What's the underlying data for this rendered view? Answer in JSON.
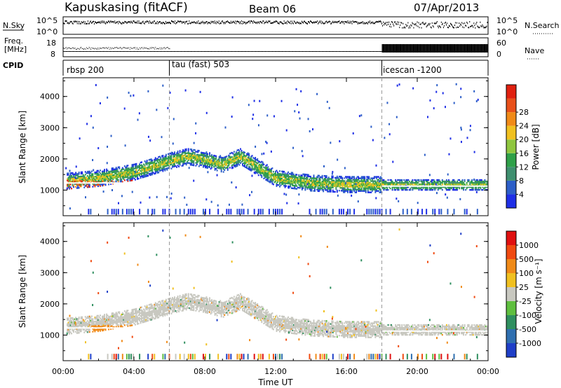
{
  "header": {
    "station": "Kapuskasing (fitACF)",
    "beam": "Beam 06",
    "date": "07/Apr/2013"
  },
  "left_labels": {
    "nsky": "N.Sky",
    "freq_line1": "Freq.",
    "freq_line2": "[MHz]",
    "cpid": "CPID"
  },
  "right_labels": {
    "nsearch": "N.Search",
    "nave": "Nave"
  },
  "noise_axis": {
    "top_label_left": "10^5",
    "bottom_label_left": "10^0",
    "top_label_right": "10^5",
    "bottom_label_right": "10^0"
  },
  "freq_axis": {
    "left_ticks": [
      "18",
      "8"
    ],
    "right_ticks": [
      "60",
      "0"
    ]
  },
  "cpid_segments": [
    {
      "label": "rbsp 200",
      "start_hour": 0
    },
    {
      "label": "tau (fast) 503",
      "start_hour": 6
    },
    {
      "label": "icescan -1200",
      "start_hour": 18
    }
  ],
  "chart_data": [
    {
      "type": "heatmap",
      "name": "power",
      "xlabel": "Time UT",
      "ylabel": "Slant Range [km]",
      "xlim": [
        0,
        24
      ],
      "ylim": [
        180,
        4600
      ],
      "x_ticks": [
        "00:00",
        "04:00",
        "08:00",
        "12:00",
        "16:00",
        "20:00",
        "00:00"
      ],
      "y_ticks": [
        1000,
        2000,
        3000,
        4000
      ],
      "colorbar": {
        "label": "Power [dB]",
        "ticks": [
          "4",
          "8",
          "12",
          "16",
          "20",
          "24",
          "28"
        ],
        "colors": [
          "#1f2fe6",
          "#2d5fc8",
          "#3f8f6f",
          "#2fa049",
          "#8fc63f",
          "#f0c020",
          "#f08a18",
          "#e8501a",
          "#e02010"
        ]
      },
      "features": [
        {
          "desc": "main scatter band",
          "start_hour": 0,
          "end_hour": 24,
          "range_km_by_hour": [
            [
              0,
              1250
            ],
            [
              2,
              1350
            ],
            [
              4,
              1550
            ],
            [
              6,
              1900
            ],
            [
              7,
              2050
            ],
            [
              8,
              1950
            ],
            [
              9,
              1800
            ],
            [
              10,
              2050
            ],
            [
              11,
              1700
            ],
            [
              12,
              1350
            ],
            [
              14,
              1200
            ],
            [
              16,
              1150
            ],
            [
              18,
              1150
            ],
            [
              20,
              1150
            ],
            [
              22,
              1150
            ],
            [
              24,
              1150
            ]
          ]
        }
      ]
    },
    {
      "type": "heatmap",
      "name": "velocity",
      "xlabel": "Time UT",
      "ylabel": "Slant Range [km]",
      "xlim": [
        0,
        24
      ],
      "ylim": [
        180,
        4600
      ],
      "x_ticks": [
        "00:00",
        "04:00",
        "08:00",
        "12:00",
        "16:00",
        "20:00",
        "00:00"
      ],
      "y_ticks": [
        1000,
        2000,
        3000,
        4000
      ],
      "colorbar": {
        "label": "Velocity [m s⁻¹]",
        "ticks": [
          "1000",
          "500",
          "100",
          "25",
          "-25",
          "-100",
          "-500",
          "-1000"
        ],
        "colors": [
          "#1f3fc8",
          "#2f6fb0",
          "#2f8f5f",
          "#5fbf3f",
          "#c8c8c0",
          "#f0c020",
          "#f08a18",
          "#f04a10",
          "#e01010"
        ]
      }
    }
  ]
}
